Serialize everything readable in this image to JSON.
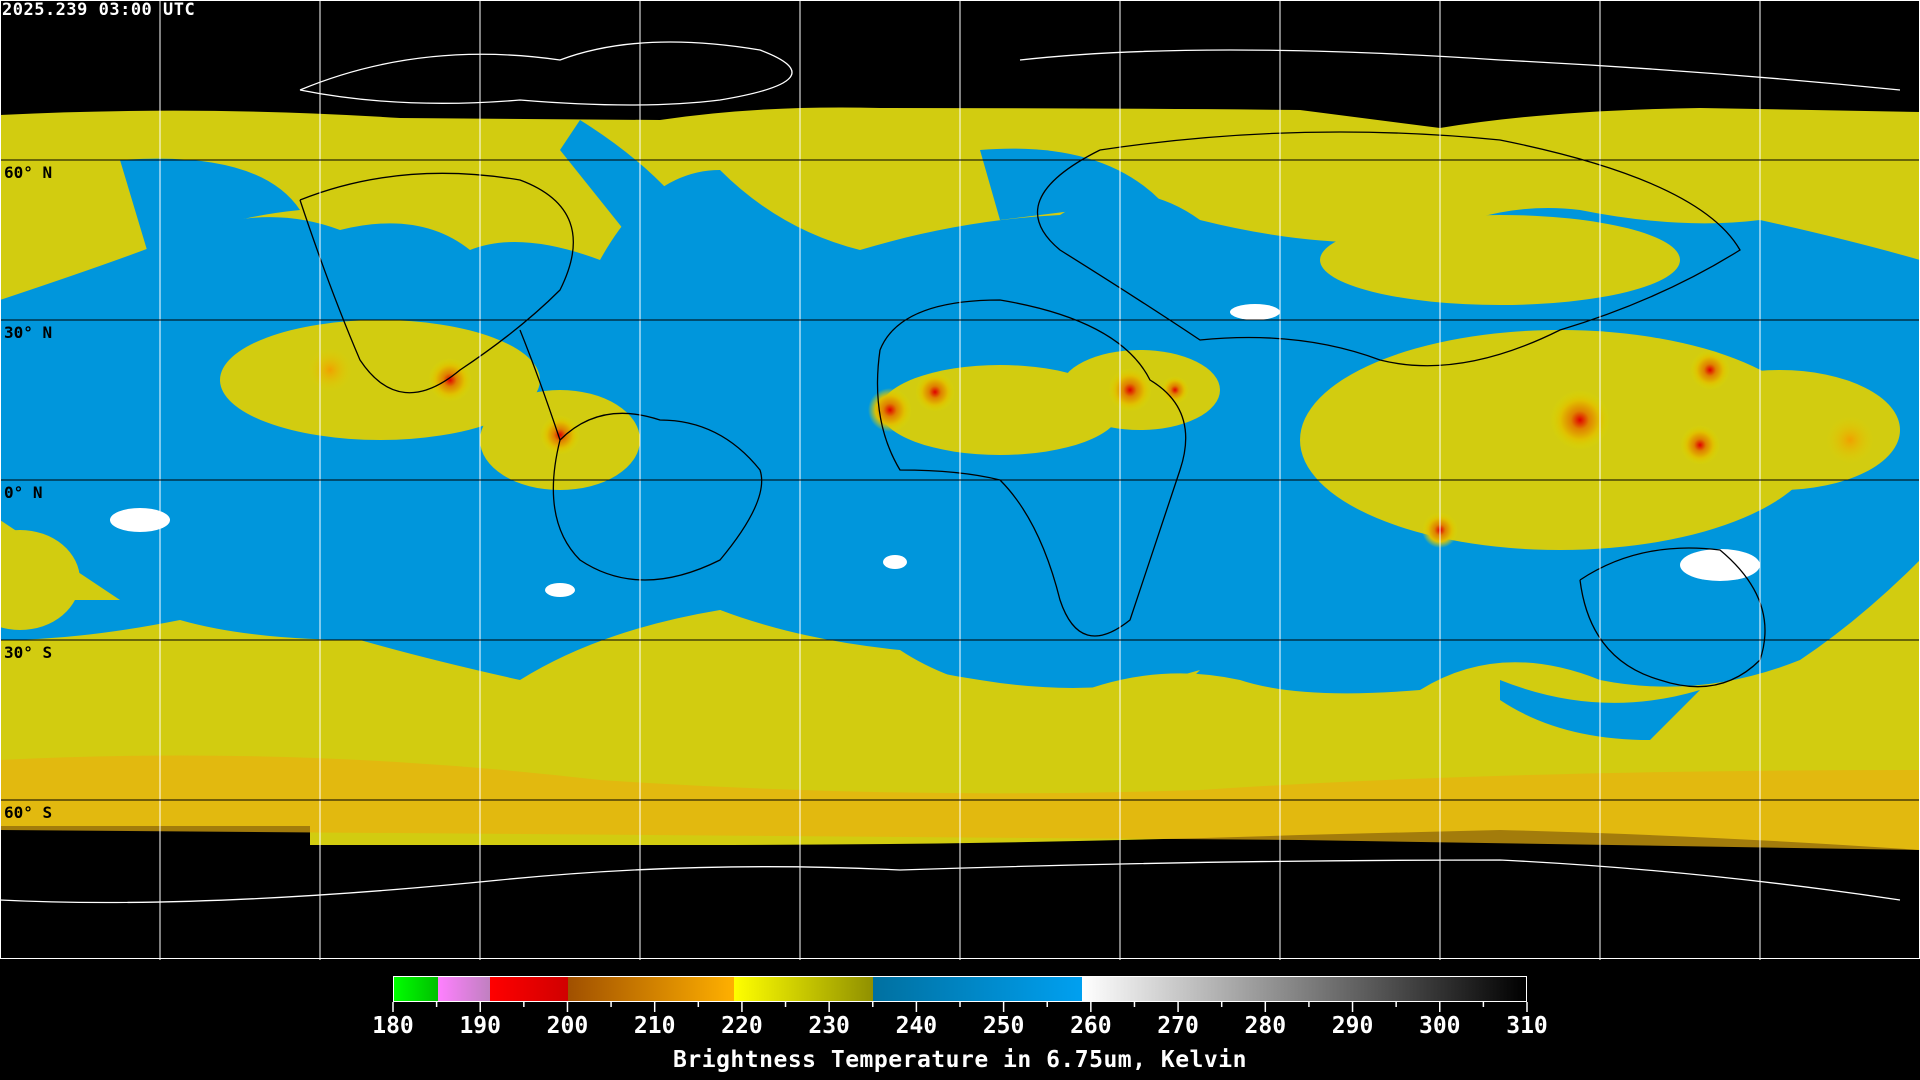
{
  "header": {
    "timestamp": "2025.239 03:00 UTC"
  },
  "map": {
    "projection": "equirectangular",
    "lat_labels": [
      "60° N",
      "30° N",
      "0° N",
      "30° S",
      "60° S"
    ],
    "grid_spacing_deg": 30,
    "colors": {
      "background": "#000000",
      "grid": "#000000",
      "coast_on_data": "#000000",
      "coast_off_data": "#ffffff"
    }
  },
  "colorbar": {
    "title": "Brightness Temperature in 6.75um, Kelvin",
    "range": [
      180,
      310
    ],
    "ticks": [
      "180",
      "190",
      "200",
      "210",
      "220",
      "230",
      "240",
      "250",
      "260",
      "270",
      "280",
      "290",
      "300",
      "310"
    ],
    "segments": [
      {
        "from": 180,
        "to": 185,
        "colors": [
          "#00ff00",
          "#00c000"
        ]
      },
      {
        "from": 185,
        "to": 191,
        "colors": [
          "#ff80ff",
          "#c080c0"
        ]
      },
      {
        "from": 191,
        "to": 200,
        "colors": [
          "#ff0000",
          "#d00000"
        ]
      },
      {
        "from": 200,
        "to": 219,
        "colors": [
          "#a05000",
          "#ffb000"
        ]
      },
      {
        "from": 219,
        "to": 235,
        "colors": [
          "#ffff00",
          "#909000"
        ]
      },
      {
        "from": 235,
        "to": 259,
        "colors": [
          "#0070a0",
          "#00a0f0"
        ]
      },
      {
        "from": 259,
        "to": 310,
        "colors": [
          "#ffffff",
          "#000000"
        ]
      }
    ]
  }
}
